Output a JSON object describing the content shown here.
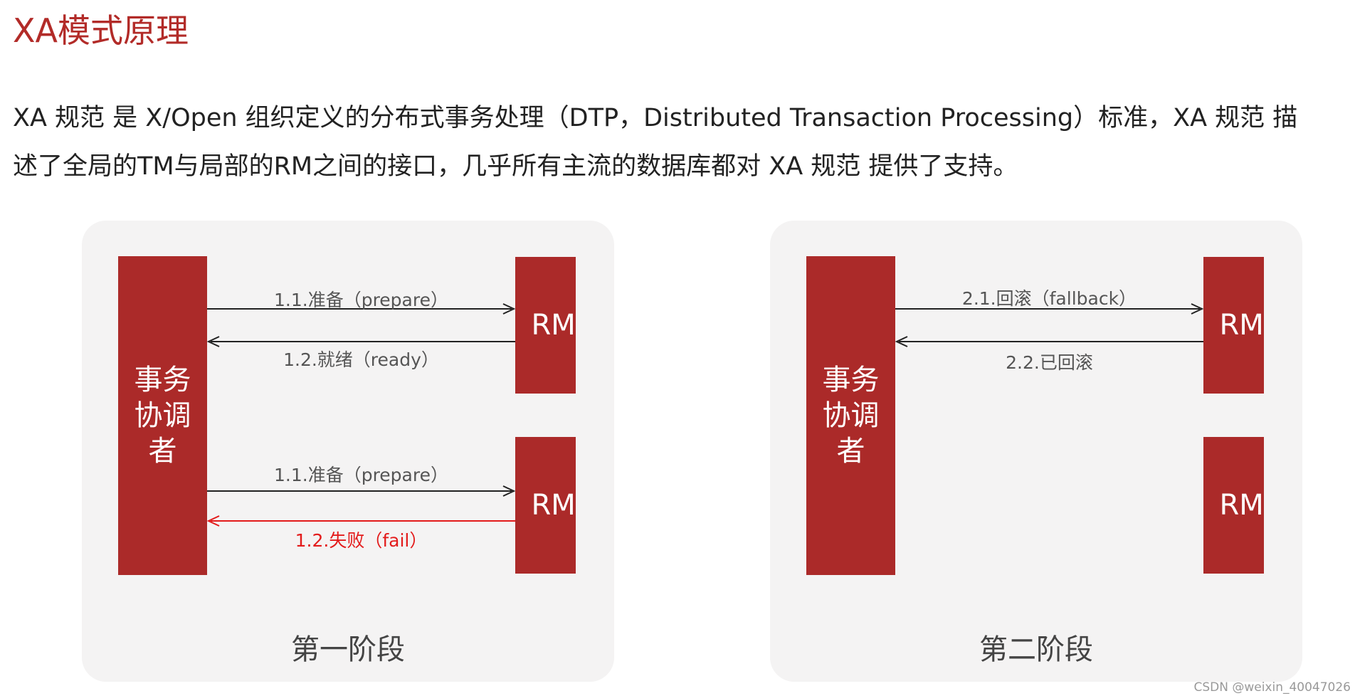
{
  "title": "XA模式原理",
  "paragraph": {
    "line1": "XA 规范 是 X/Open 组织定义的分布式事务处理（DTP，Distributed Transaction Processing）标准，XA 规范 描",
    "line2": "述了全局的TM与局部的RM之间的接口，几乎所有主流的数据库都对 XA 规范 提供了支持。"
  },
  "phase1": {
    "label": "第一阶段",
    "coordinator": "事务协调者",
    "rm_top": "RM",
    "rm_bottom": "RM",
    "msg_prepare_1": "1.1.准备（prepare）",
    "msg_ready": "1.2.就绪（ready）",
    "msg_prepare_2": "1.1.准备（prepare）",
    "msg_fail": "1.2.失败（fail）"
  },
  "phase2": {
    "label": "第二阶段",
    "coordinator": "事务协调者",
    "rm_top": "RM",
    "rm_bottom": "RM",
    "msg_rollback": "2.1.回滚（fallback）",
    "msg_rolled_back": "2.2.已回滚"
  },
  "watermark": "CSDN @weixin_40047026",
  "colors": {
    "accent": "#ab2a29",
    "panel_bg": "#f4f3f3",
    "fail_red": "#e31b1b",
    "arrow": "#222222"
  }
}
